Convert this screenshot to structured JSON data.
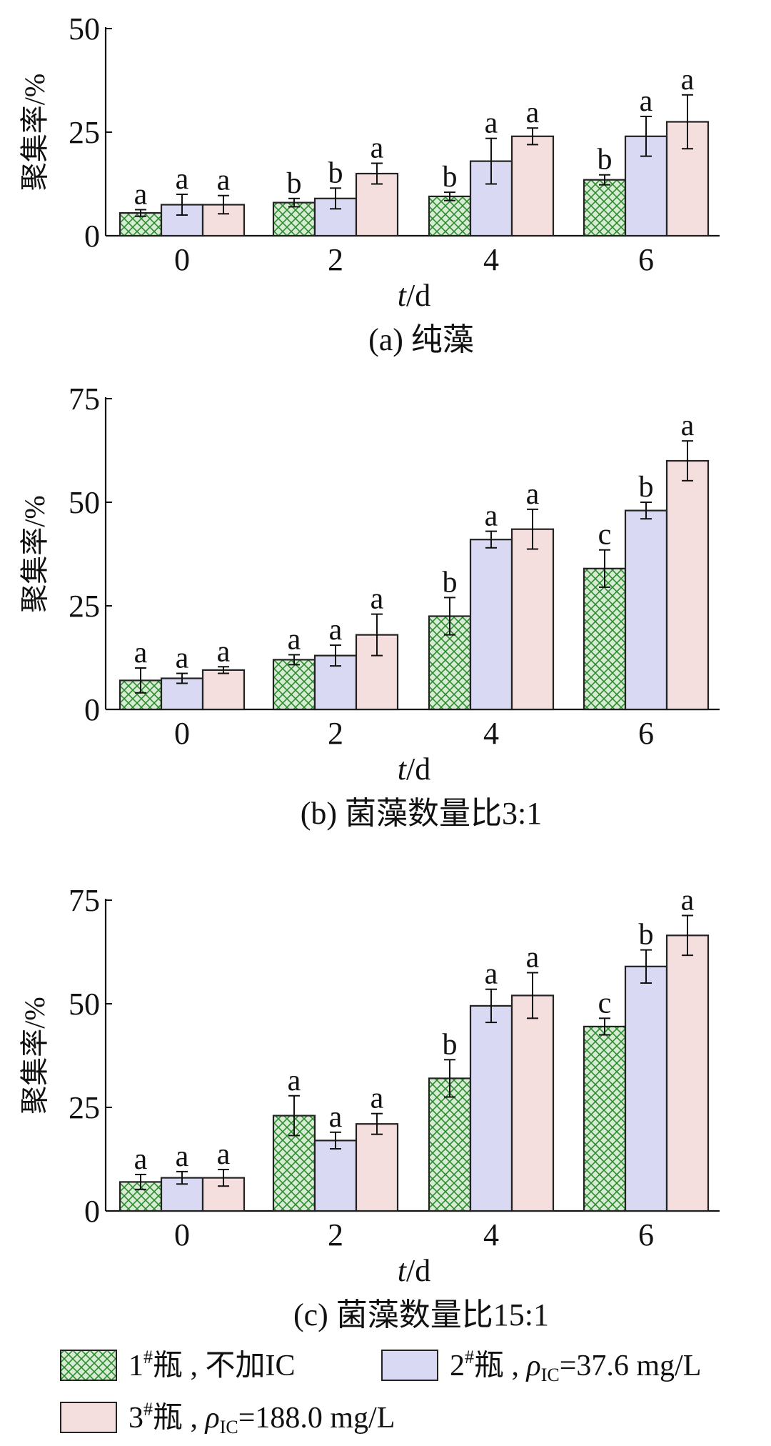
{
  "chart_data": [
    {
      "type": "bar",
      "panel_label": "(a)",
      "title": "纯藻",
      "xlabel_italic": "t",
      "xlabel_unit": "/d",
      "ylabel": "聚集率/%",
      "categories": [
        "0",
        "2",
        "4",
        "6"
      ],
      "ylim": [
        0,
        50
      ],
      "yticks": [
        "0",
        "25",
        "50"
      ],
      "series": [
        {
          "name": "1#瓶",
          "values": [
            5.5,
            8.0,
            9.5,
            13.5
          ],
          "errors": [
            0.8,
            1.0,
            1.0,
            1.2
          ],
          "letters": [
            "a",
            "b",
            "b",
            "b"
          ]
        },
        {
          "name": "2#瓶",
          "values": [
            7.5,
            9.0,
            18.0,
            24.0
          ],
          "errors": [
            2.5,
            2.5,
            5.5,
            4.8
          ],
          "letters": [
            "a",
            "b",
            "a",
            "a"
          ]
        },
        {
          "name": "3#瓶",
          "values": [
            7.5,
            15.0,
            24.0,
            27.5
          ],
          "errors": [
            2.2,
            2.5,
            2.0,
            6.5
          ],
          "letters": [
            "a",
            "a",
            "a",
            "a"
          ]
        }
      ]
    },
    {
      "type": "bar",
      "panel_label": "(b)",
      "title": "菌藻数量比3:1",
      "xlabel_italic": "t",
      "xlabel_unit": "/d",
      "ylabel": "聚集率/%",
      "categories": [
        "0",
        "2",
        "4",
        "6"
      ],
      "ylim": [
        0,
        75
      ],
      "yticks": [
        "0",
        "25",
        "50",
        "75"
      ],
      "series": [
        {
          "name": "1#瓶",
          "values": [
            7.0,
            12.0,
            22.5,
            34.0
          ],
          "errors": [
            3.0,
            1.2,
            4.5,
            4.5
          ],
          "letters": [
            "a",
            "a",
            "b",
            "c"
          ]
        },
        {
          "name": "2#瓶",
          "values": [
            7.5,
            13.0,
            41.0,
            48.0
          ],
          "errors": [
            1.2,
            2.5,
            2.0,
            2.0
          ],
          "letters": [
            "a",
            "a",
            "a",
            "b"
          ]
        },
        {
          "name": "3#瓶",
          "values": [
            9.5,
            18.0,
            43.5,
            60.0
          ],
          "errors": [
            0.8,
            5.0,
            4.8,
            4.8
          ],
          "letters": [
            "a",
            "a",
            "a",
            "a"
          ]
        }
      ]
    },
    {
      "type": "bar",
      "panel_label": "(c)",
      "title": "菌藻数量比15:1",
      "xlabel_italic": "t",
      "xlabel_unit": "/d",
      "ylabel": "聚集率/%",
      "categories": [
        "0",
        "2",
        "4",
        "6"
      ],
      "ylim": [
        0,
        75
      ],
      "yticks": [
        "0",
        "25",
        "50",
        "75"
      ],
      "series": [
        {
          "name": "1#瓶",
          "values": [
            7.0,
            23.0,
            32.0,
            44.5
          ],
          "errors": [
            1.8,
            4.8,
            4.5,
            2.0
          ],
          "letters": [
            "a",
            "a",
            "b",
            "c"
          ]
        },
        {
          "name": "2#瓶",
          "values": [
            8.0,
            17.0,
            49.5,
            59.0
          ],
          "errors": [
            1.5,
            2.0,
            4.0,
            4.0
          ],
          "letters": [
            "a",
            "a",
            "a",
            "b"
          ]
        },
        {
          "name": "3#瓶",
          "values": [
            8.0,
            21.0,
            52.0,
            66.5
          ],
          "errors": [
            2.0,
            2.5,
            5.5,
            4.8
          ],
          "letters": [
            "a",
            "a",
            "a",
            "a"
          ]
        }
      ]
    }
  ],
  "legend": [
    {
      "main": "1",
      "sup": "#",
      "rest": "瓶 , 不加IC",
      "fill": "#d8ecd5",
      "hatch": "#2e8b2e"
    },
    {
      "main": "2",
      "sup": "#",
      "rest": "瓶 , ",
      "rho": "ρ",
      "sub": "IC",
      "value": "=37.6 mg/L",
      "fill": "#d9d9f3"
    },
    {
      "main": "3",
      "sup": "#",
      "rest": "瓶 , ",
      "rho": "ρ",
      "sub": "IC",
      "value": "=188.0 mg/L",
      "fill": "#f5dede"
    }
  ],
  "colors": {
    "series1_fill": "#d8ecd5",
    "series1_hatch": "#2e8b2e",
    "series2_fill": "#d9d9f3",
    "series3_fill": "#f5dede",
    "axis": "#111111"
  }
}
